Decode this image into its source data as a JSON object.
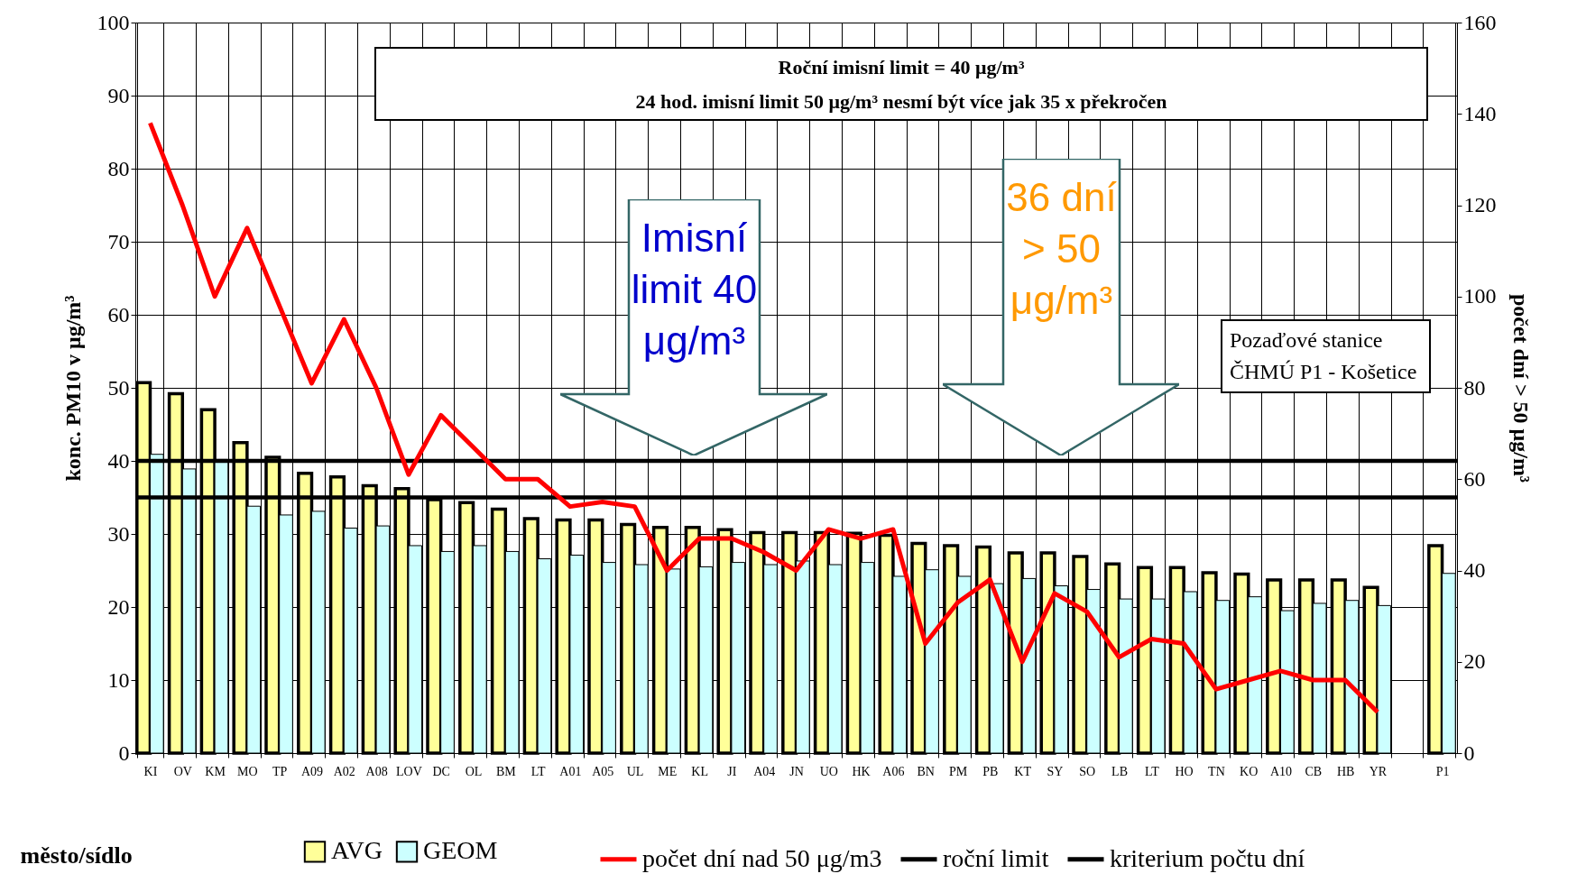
{
  "chart_data": {
    "type": "bar",
    "xlabel": "město/sídlo",
    "ylabel": "konc. PM10 v μg/m³",
    "y2label": "počet dní > 50 μg/m³",
    "categories": [
      "KI",
      "OV",
      "KM",
      "MO",
      "TP",
      "A09",
      "A02",
      "A08",
      "LOV",
      "DC",
      "OL",
      "BM",
      "LT",
      "A01",
      "A05",
      "UL",
      "ME",
      "KL",
      "JI",
      "A04",
      "JN",
      "UO",
      "HK",
      "A06",
      "BN",
      "PM",
      "PB",
      "KT",
      "SY",
      "SO",
      "LB",
      "LT",
      "HO",
      "TN",
      "KO",
      "A10",
      "CB",
      "HB",
      "YR",
      null,
      "P1"
    ],
    "series": [
      {
        "name": "AVG",
        "color": "#ffff99",
        "values": [
          50.7,
          49.2,
          47,
          42.5,
          40.5,
          38.3,
          37.8,
          36.6,
          36.2,
          34.7,
          34.3,
          33.4,
          32.1,
          31.9,
          31.9,
          31.3,
          30.9,
          30.9,
          30.6,
          30.2,
          30.2,
          30.2,
          30.1,
          29.8,
          28.7,
          28.4,
          28.2,
          27.4,
          27.4,
          26.9,
          25.9,
          25.4,
          25.4,
          24.7,
          24.5,
          23.7,
          23.7,
          23.7,
          22.7,
          null,
          28.4
        ]
      },
      {
        "name": "GEOM",
        "color": "#ccffff",
        "values": [
          40.9,
          38.9,
          40.2,
          33.8,
          32.6,
          33.1,
          30.8,
          31.1,
          28.4,
          27.6,
          28.4,
          27.6,
          26.6,
          27.1,
          26.1,
          25.8,
          25.2,
          25.5,
          26.1,
          25.8,
          26.3,
          25.8,
          26.1,
          24.2,
          25.1,
          24.2,
          23.2,
          23.9,
          22.9,
          22.4,
          21.1,
          21.1,
          22.1,
          20.9,
          21.4,
          19.5,
          20.5,
          20.9,
          20.2,
          null,
          24.6
        ]
      },
      {
        "name": "počet dní nad 50 μg/m3",
        "type": "line",
        "axis": "y2",
        "color": "#ff0000",
        "values": [
          138,
          120,
          100,
          115,
          98,
          81,
          95,
          80,
          61,
          74,
          67,
          60,
          60,
          54,
          55,
          54,
          40,
          47,
          47,
          44,
          40,
          49,
          47,
          49,
          24,
          33,
          38,
          20,
          35,
          31,
          21,
          25,
          24,
          14,
          16,
          18,
          16,
          16,
          9,
          null,
          null
        ]
      }
    ],
    "ylim": [
      0,
      100
    ],
    "yticks": [
      0,
      10,
      20,
      30,
      40,
      50,
      60,
      70,
      80,
      90,
      100
    ],
    "y2lim": [
      0,
      160
    ],
    "y2ticks": [
      0,
      20,
      40,
      60,
      80,
      100,
      120,
      140,
      160
    ],
    "ref_lines": [
      {
        "axis": "y",
        "value": 40,
        "label": "roční limit",
        "color": "#000000"
      },
      {
        "axis": "y",
        "value": 35,
        "label": "kriterium počtu dní",
        "color": "#000000"
      }
    ],
    "annotations": [
      "Roční imisní limit = 40 μg/m³",
      "24 hod. imisní limit 50 μg/m³ nesmí být více jak 35 x překročen",
      "Imisní limit 40 μg/m³",
      "36 dní > 50 μg/m³",
      "Pozaďové stanice ČHMÚ P1 - Košetice"
    ],
    "grid": true,
    "legend": "bottom"
  }
}
